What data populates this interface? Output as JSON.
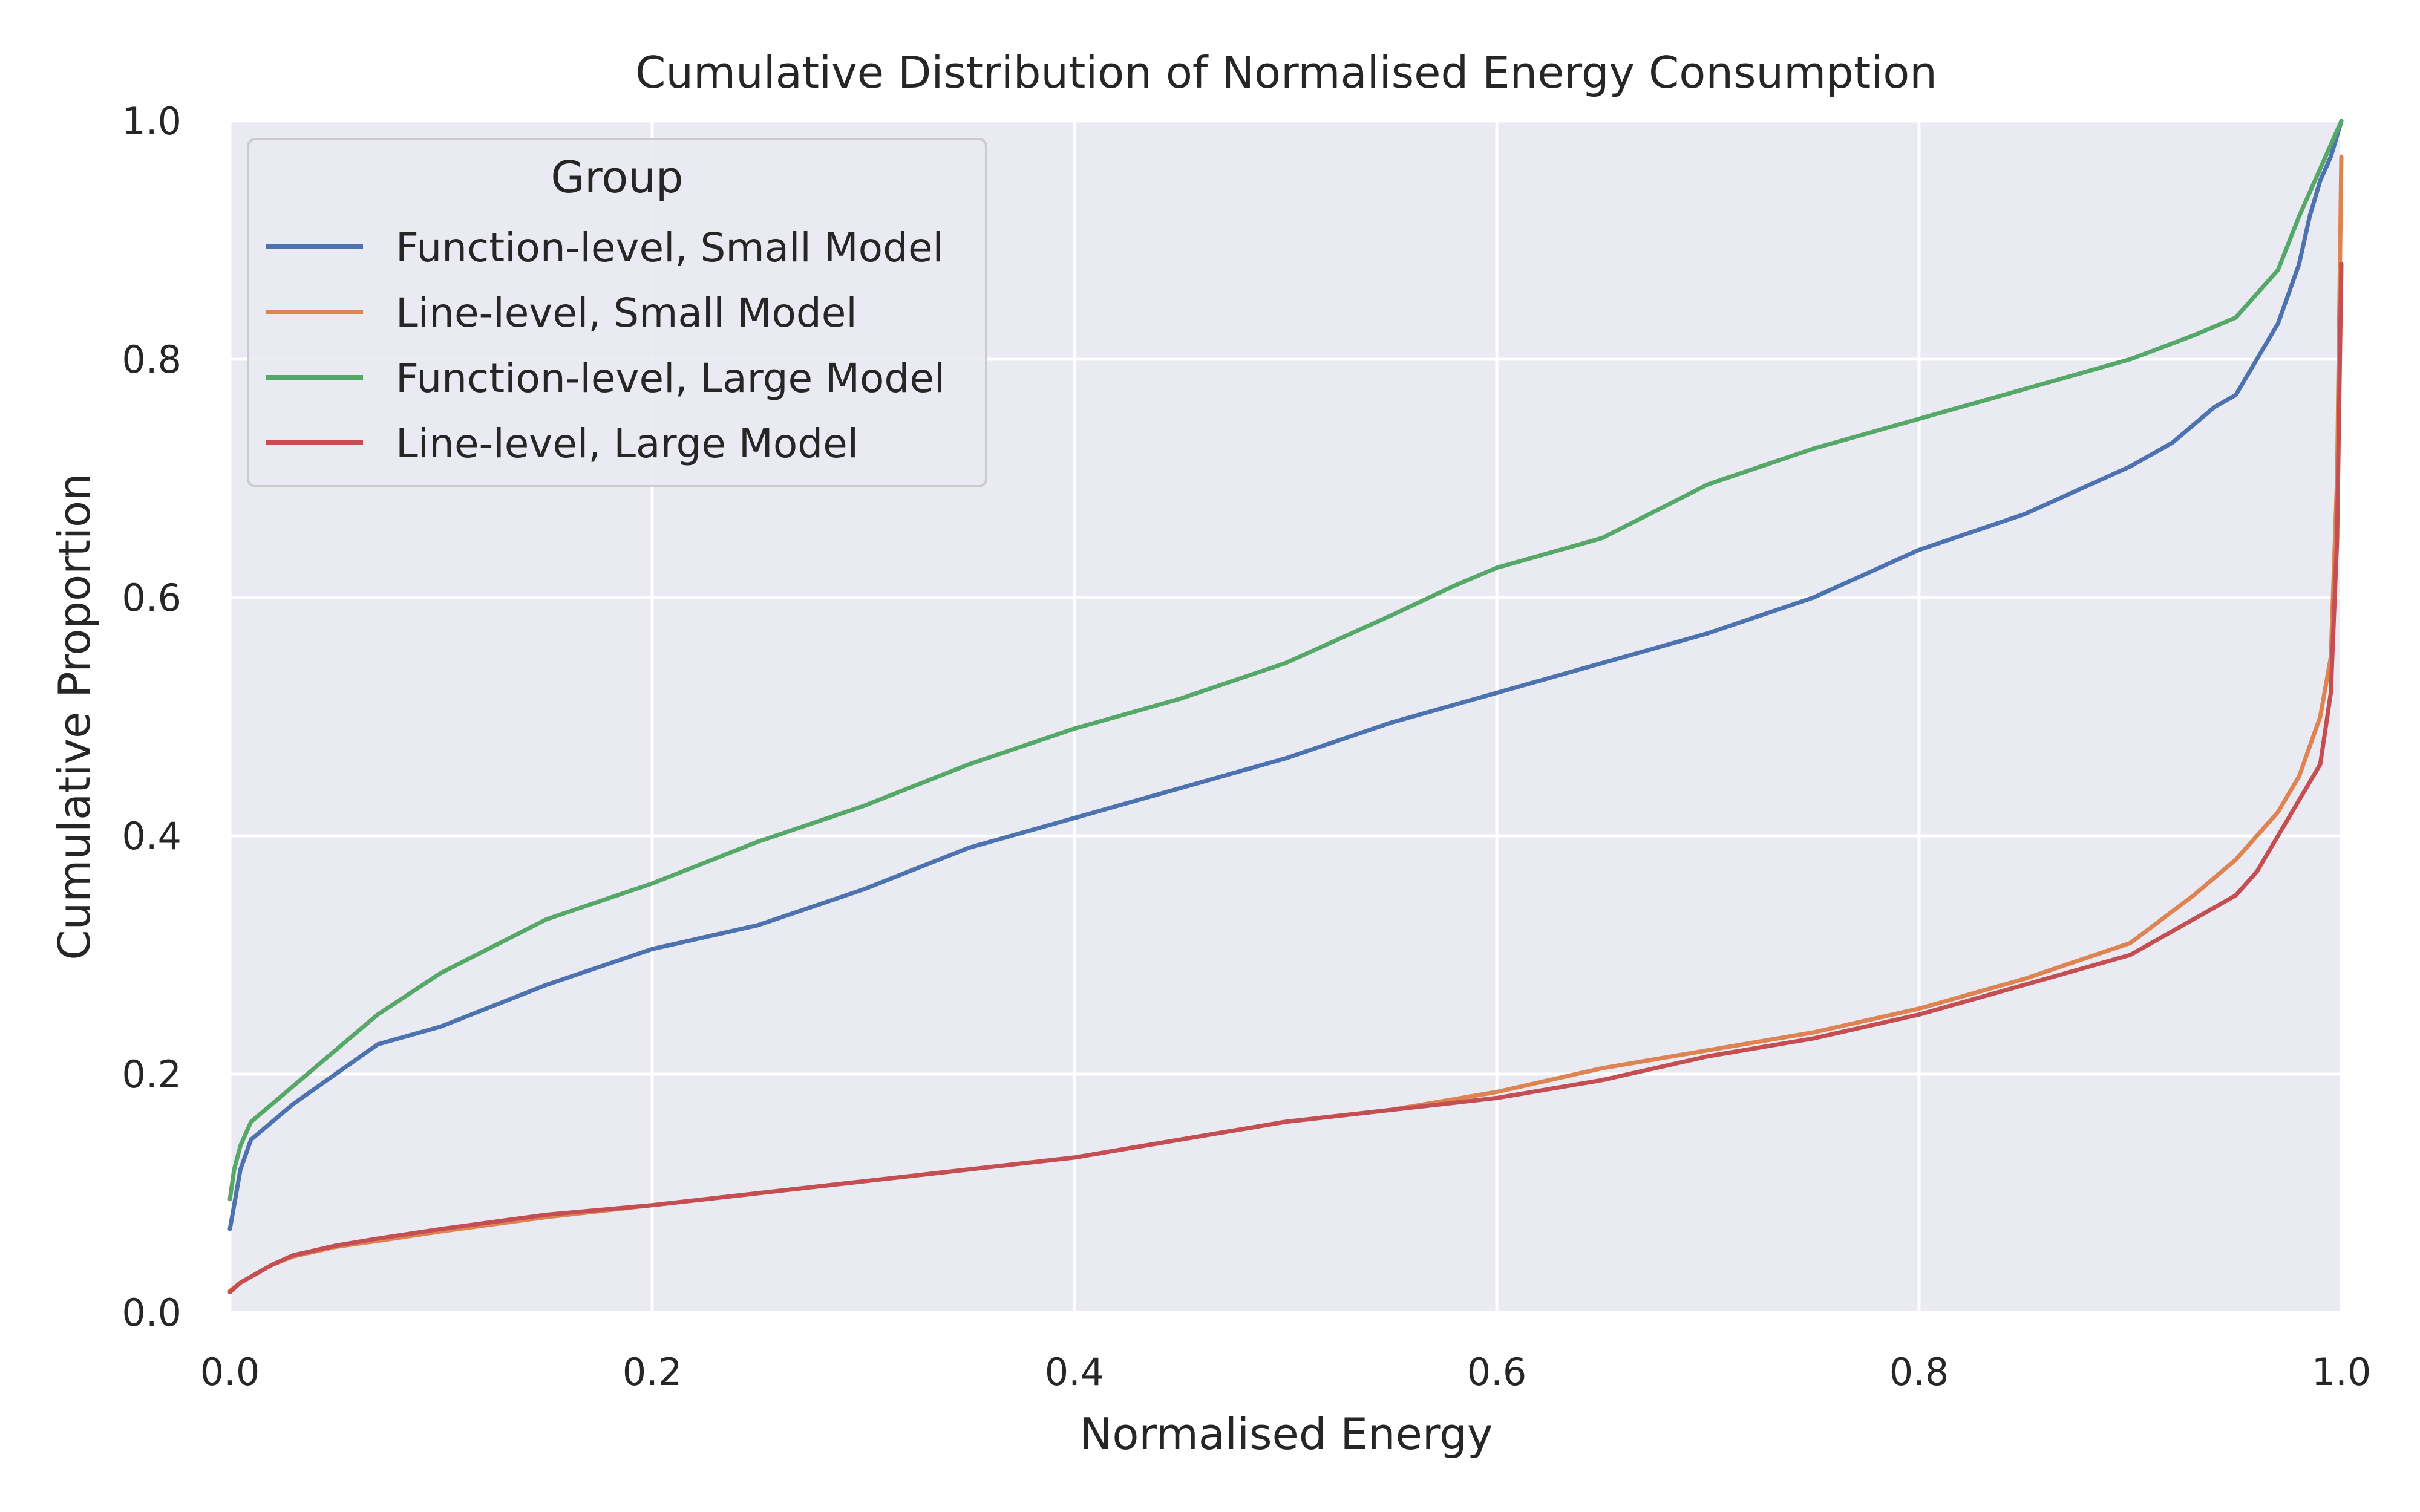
{
  "chart_data": {
    "type": "line",
    "title": "Cumulative Distribution of Normalised Energy Consumption",
    "xlabel": "Normalised Energy",
    "ylabel": "Cumulative Proportion",
    "xlim": [
      0.0,
      1.0
    ],
    "ylim": [
      0.0,
      1.0
    ],
    "xticks": [
      "0.0",
      "0.2",
      "0.4",
      "0.6",
      "0.8",
      "1.0"
    ],
    "yticks": [
      "0.0",
      "0.2",
      "0.4",
      "0.6",
      "0.8",
      "1.0"
    ],
    "grid": true,
    "legend": {
      "title": "Group",
      "position": "top-left"
    },
    "series": [
      {
        "name": "Function-level, Small Model",
        "color": "#4c72b0",
        "x": [
          0.0,
          0.002,
          0.005,
          0.01,
          0.02,
          0.03,
          0.05,
          0.07,
          0.1,
          0.15,
          0.2,
          0.25,
          0.3,
          0.35,
          0.4,
          0.45,
          0.5,
          0.55,
          0.6,
          0.65,
          0.7,
          0.75,
          0.8,
          0.85,
          0.9,
          0.92,
          0.94,
          0.95,
          0.96,
          0.97,
          0.98,
          0.985,
          0.99,
          0.995,
          1.0
        ],
        "y": [
          0.07,
          0.09,
          0.12,
          0.145,
          0.16,
          0.175,
          0.2,
          0.225,
          0.24,
          0.275,
          0.305,
          0.325,
          0.355,
          0.39,
          0.415,
          0.44,
          0.465,
          0.495,
          0.52,
          0.545,
          0.57,
          0.6,
          0.64,
          0.67,
          0.71,
          0.73,
          0.76,
          0.77,
          0.8,
          0.83,
          0.88,
          0.92,
          0.95,
          0.97,
          1.0
        ]
      },
      {
        "name": "Line-level, Small Model",
        "color": "#dd8452",
        "x": [
          0.0,
          0.005,
          0.01,
          0.02,
          0.03,
          0.05,
          0.07,
          0.1,
          0.15,
          0.2,
          0.25,
          0.3,
          0.35,
          0.4,
          0.45,
          0.5,
          0.55,
          0.6,
          0.65,
          0.7,
          0.75,
          0.8,
          0.85,
          0.9,
          0.93,
          0.95,
          0.96,
          0.97,
          0.98,
          0.99,
          0.995,
          0.998,
          1.0
        ],
        "y": [
          0.018,
          0.025,
          0.03,
          0.04,
          0.047,
          0.055,
          0.06,
          0.068,
          0.08,
          0.09,
          0.1,
          0.11,
          0.12,
          0.13,
          0.145,
          0.16,
          0.17,
          0.185,
          0.205,
          0.22,
          0.235,
          0.255,
          0.28,
          0.31,
          0.35,
          0.38,
          0.4,
          0.42,
          0.45,
          0.5,
          0.55,
          0.7,
          0.97
        ]
      },
      {
        "name": "Function-level, Large Model",
        "color": "#55a868",
        "x": [
          0.0,
          0.002,
          0.005,
          0.01,
          0.02,
          0.03,
          0.05,
          0.07,
          0.1,
          0.15,
          0.2,
          0.25,
          0.3,
          0.35,
          0.4,
          0.45,
          0.5,
          0.55,
          0.58,
          0.6,
          0.65,
          0.7,
          0.75,
          0.8,
          0.85,
          0.9,
          0.93,
          0.95,
          0.96,
          0.97,
          0.98,
          0.99,
          1.0
        ],
        "y": [
          0.095,
          0.12,
          0.14,
          0.16,
          0.175,
          0.19,
          0.22,
          0.25,
          0.285,
          0.33,
          0.36,
          0.395,
          0.425,
          0.46,
          0.49,
          0.515,
          0.545,
          0.585,
          0.61,
          0.625,
          0.65,
          0.695,
          0.725,
          0.75,
          0.775,
          0.8,
          0.82,
          0.835,
          0.855,
          0.875,
          0.92,
          0.96,
          1.0
        ]
      },
      {
        "name": "Line-level, Large Model",
        "color": "#c44e52",
        "x": [
          0.0,
          0.005,
          0.01,
          0.02,
          0.03,
          0.05,
          0.07,
          0.1,
          0.15,
          0.2,
          0.25,
          0.3,
          0.35,
          0.4,
          0.45,
          0.5,
          0.55,
          0.6,
          0.65,
          0.7,
          0.75,
          0.8,
          0.85,
          0.9,
          0.93,
          0.95,
          0.96,
          0.97,
          0.98,
          0.99,
          0.995,
          0.998,
          1.0
        ],
        "y": [
          0.017,
          0.025,
          0.03,
          0.04,
          0.048,
          0.056,
          0.062,
          0.07,
          0.082,
          0.09,
          0.1,
          0.11,
          0.12,
          0.13,
          0.145,
          0.16,
          0.17,
          0.18,
          0.195,
          0.215,
          0.23,
          0.25,
          0.275,
          0.3,
          0.33,
          0.35,
          0.37,
          0.4,
          0.43,
          0.46,
          0.52,
          0.65,
          0.88
        ]
      }
    ]
  }
}
